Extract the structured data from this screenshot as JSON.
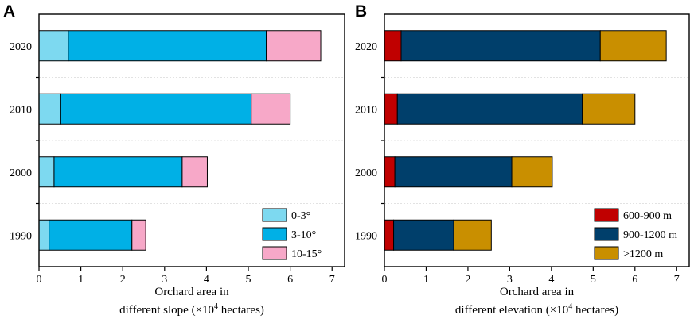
{
  "chart_data": [
    {
      "type": "bar",
      "orientation": "horizontal",
      "stacked": true,
      "panel": "A",
      "categories": [
        "2020",
        "2010",
        "2000",
        "1990"
      ],
      "series": [
        {
          "name": "0-3°",
          "color": "#7dd9f0",
          "values": [
            0.7,
            0.52,
            0.36,
            0.24
          ]
        },
        {
          "name": "3-10°",
          "color": "#00b0e6",
          "values": [
            4.73,
            4.55,
            3.06,
            1.98
          ]
        },
        {
          "name": "10-15°",
          "color": "#f7a8c8",
          "values": [
            1.3,
            0.93,
            0.6,
            0.33
          ]
        }
      ],
      "xlabel_line1": "Orchard area in",
      "xlabel_line2_pre": "different slope (×10",
      "xlabel_sup": "4",
      "xlabel_line2_post": " hectares)",
      "xticks": [
        0,
        1,
        2,
        3,
        4,
        5,
        6,
        7
      ],
      "xlim": [
        0,
        7.3
      ],
      "legend_position": "bottom-right"
    },
    {
      "type": "bar",
      "orientation": "horizontal",
      "stacked": true,
      "panel": "B",
      "categories": [
        "2020",
        "2010",
        "2000",
        "1990"
      ],
      "series": [
        {
          "name": "600-900 m",
          "color": "#c00000",
          "values": [
            0.4,
            0.31,
            0.25,
            0.22
          ]
        },
        {
          "name": "900-1200 m",
          "color": "#003f6b",
          "values": [
            4.77,
            4.43,
            2.8,
            1.44
          ]
        },
        {
          "name": ">1200 m",
          "color": "#c98f00",
          "values": [
            1.58,
            1.26,
            0.97,
            0.9
          ]
        }
      ],
      "xlabel_line1": "Orchard area in",
      "xlabel_line2_pre": "different elevation (×10",
      "xlabel_sup": "4",
      "xlabel_line2_post": " hectares)",
      "xticks": [
        0,
        1,
        2,
        3,
        4,
        5,
        6,
        7
      ],
      "xlim": [
        0,
        7.3
      ],
      "legend_position": "bottom-right"
    }
  ]
}
